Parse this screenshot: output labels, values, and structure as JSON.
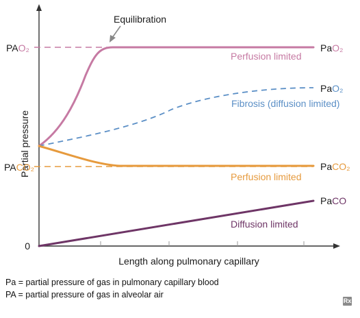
{
  "colors": {
    "o2": "#c67aa3",
    "fibrosis": "#5b8fc6",
    "co2": "#e69a3d",
    "co": "#6e3566",
    "axis": "#333333",
    "tick": "#9a9a9a"
  },
  "axes": {
    "ylabel": "Partial pressure",
    "xlabel": "Length along pulmonary capillary",
    "zero": "0"
  },
  "left_labels": {
    "pao2": {
      "base": "PA",
      "sub": "O₂"
    },
    "paco2": {
      "base": "PA",
      "sub": "CO₂"
    }
  },
  "right_labels": {
    "o2_perfusion": {
      "base": "Pa",
      "sub": "O₂"
    },
    "o2_fibrosis": {
      "base": "Pa",
      "sub": "O₂"
    },
    "co2": {
      "base": "Pa",
      "sub": "CO₂"
    },
    "co": {
      "base": "Pa",
      "sub": "CO"
    }
  },
  "annotations": {
    "equilibration": "Equilibration",
    "o2_perfusion": "Perfusion limited",
    "fibrosis": "Fibrosis (diffusion limited)",
    "co2_perfusion": "Perfusion limited",
    "co_diffusion": "Diffusion limited"
  },
  "footnotes": [
    "Pa = partial pressure of gas in pulmonary capillary blood",
    "PA = partial pressure of gas in alveolar air"
  ],
  "badge": "Rx"
}
